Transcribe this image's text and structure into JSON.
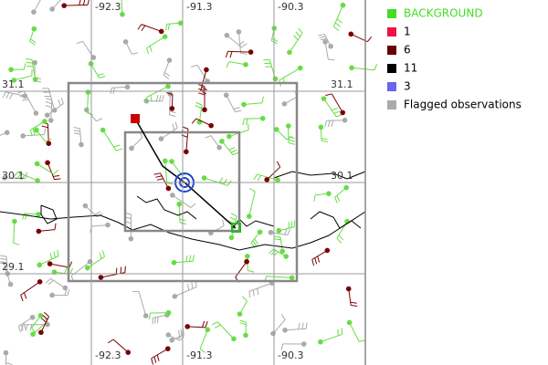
{
  "map": {
    "lon_labels_top": [
      -92.3,
      -91.3,
      -90.3
    ],
    "lon_labels_bottom": [
      -92.3,
      -91.3,
      -90.3
    ],
    "lat_labels_left": [
      31.1,
      30.1,
      29.1
    ],
    "lat_labels_right": [
      31.1,
      30.1
    ],
    "legend": [
      {
        "name": "BACKGROUND",
        "color": "#44dd22"
      },
      {
        "name": "1",
        "color": "#ee1144"
      },
      {
        "name": "6",
        "color": "#660000"
      },
      {
        "name": "11",
        "color": "#000000"
      },
      {
        "name": "3",
        "color": "#6666ee"
      },
      {
        "name": "Flagged observations",
        "color": "#aaaaaa"
      }
    ]
  }
}
